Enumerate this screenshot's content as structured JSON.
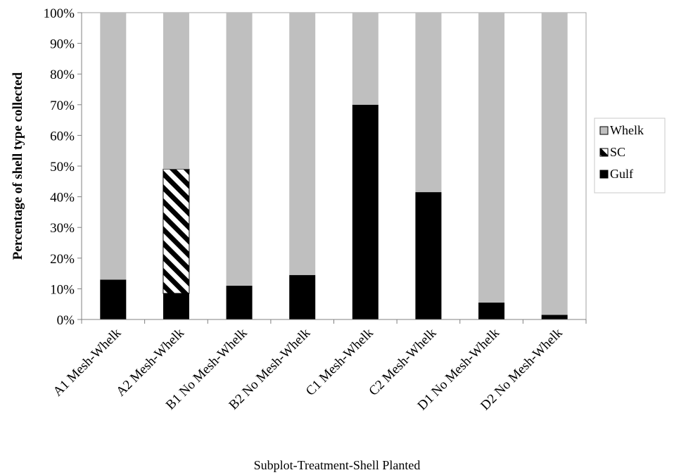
{
  "chart_data": {
    "type": "bar",
    "stacked": true,
    "percent": true,
    "categories": [
      "A1 Mesh-Whelk",
      "A2 Mesh-Whelk",
      "B1 No Mesh-Whelk",
      "B2 No Mesh-Whelk",
      "C1 Mesh-Whelk",
      "C2 Mesh-Whelk",
      "D1 No Mesh-Whelk",
      "D2 No Mesh-Whelk"
    ],
    "series": [
      {
        "name": "Gulf",
        "values": [
          13,
          8.5,
          11,
          14.5,
          70,
          41.5,
          5.5,
          1.5
        ],
        "color": "#000000",
        "pattern": "solid"
      },
      {
        "name": "SC",
        "values": [
          0,
          40.5,
          0,
          0,
          0,
          0,
          0,
          0
        ],
        "color": "#000000",
        "pattern": "diagonal-hatch"
      },
      {
        "name": "Whelk",
        "values": [
          87,
          51,
          89,
          85.5,
          30,
          58.5,
          94.5,
          98.5
        ],
        "color": "#bfbfbf",
        "pattern": "solid"
      }
    ],
    "title": "",
    "xlabel": "Subplot-Treatment-Shell Planted",
    "ylabel": "Percentage of shell type collected",
    "ylim": [
      0,
      100
    ],
    "yticks": [
      "0%",
      "10%",
      "20%",
      "30%",
      "40%",
      "50%",
      "60%",
      "70%",
      "80%",
      "90%",
      "100%"
    ],
    "grid": false,
    "legend": {
      "position": "right",
      "entries": [
        "Whelk",
        "SC",
        "Gulf"
      ]
    }
  }
}
